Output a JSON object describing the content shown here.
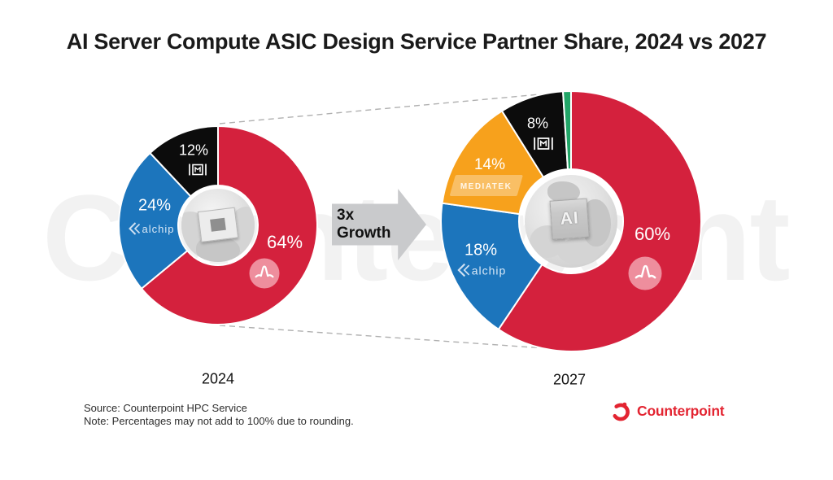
{
  "title": "AI Server Compute ASIC Design Service Partner Share, 2024 vs 2027",
  "growth_label": "3x Growth",
  "watermark": {
    "text": "Counterpoint"
  },
  "footnotes": {
    "source": "Source: Counterpoint HPC Service",
    "note": "Note: Percentages may not add to 100% due to rounding."
  },
  "brand": {
    "name": "Counterpoint",
    "color": "#E32431"
  },
  "icons": {
    "broadcom": "broadcom-pulse-icon",
    "marvell": "marvell-m-icon",
    "alchip": "alchip-chevron-icon",
    "counterpoint": "counterpoint-c-icon",
    "arrow": "arrow-right-icon"
  },
  "chart_data": [
    {
      "type": "pie",
      "variant": "donut",
      "year_label": "2024",
      "start_angle_deg_from_top": 0,
      "direction": "clockwise",
      "labels_position": "inside",
      "segments": [
        {
          "name": "Broadcom",
          "label": "64%",
          "value": 64,
          "color": "#D4213D"
        },
        {
          "name": "Alchip",
          "label": "24%",
          "value": 24,
          "color": "#1C75BC",
          "logo": "alchip"
        },
        {
          "name": "Marvell",
          "label": "12%",
          "value": 12,
          "color": "#0C0C0C"
        }
      ]
    },
    {
      "type": "pie",
      "variant": "donut",
      "year_label": "2027",
      "center_label": "AI",
      "start_angle_deg_from_top": 0,
      "direction": "clockwise",
      "labels_position": "inside",
      "segments": [
        {
          "name": "Broadcom",
          "label": "60%",
          "value": 60,
          "color": "#D4213D"
        },
        {
          "name": "Alchip",
          "label": "18%",
          "value": 18,
          "color": "#1C75BC",
          "logo": "alchip"
        },
        {
          "name": "MediaTek",
          "label": "14%",
          "value": 14,
          "color": "#F7A11C",
          "logo": "MEDIATEK"
        },
        {
          "name": "Marvell",
          "label": "8%",
          "value": 8,
          "color": "#0C0C0C"
        },
        {
          "name": "Other (unlabeled)",
          "label": "",
          "value": 1,
          "color": "#21A567"
        }
      ]
    }
  ]
}
